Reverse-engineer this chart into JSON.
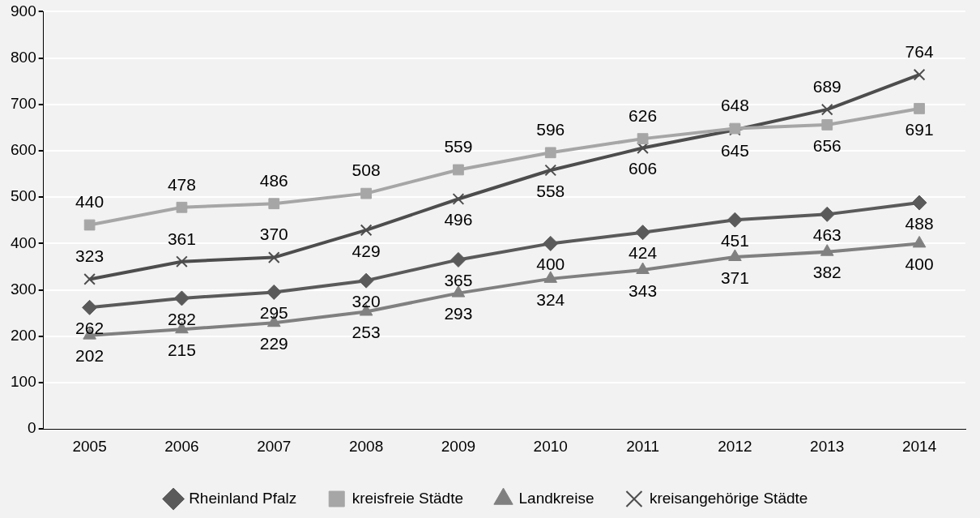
{
  "chart_data": {
    "type": "line",
    "categories": [
      "2005",
      "2006",
      "2007",
      "2008",
      "2009",
      "2010",
      "2011",
      "2012",
      "2013",
      "2014"
    ],
    "series": [
      {
        "name": "Rheinland Pfalz",
        "color": "#5a5a5a",
        "marker": "diamond",
        "values": [
          262,
          282,
          295,
          320,
          365,
          400,
          424,
          451,
          463,
          488
        ]
      },
      {
        "name": "kreisfreie Städte",
        "color": "#a6a6a6",
        "marker": "square",
        "values": [
          440,
          478,
          486,
          508,
          559,
          596,
          626,
          648,
          656,
          691
        ]
      },
      {
        "name": "Landkreise",
        "color": "#808080",
        "marker": "triangle",
        "values": [
          202,
          215,
          229,
          253,
          293,
          324,
          343,
          371,
          382,
          400
        ]
      },
      {
        "name": "kreisangehörige Städte",
        "color": "#4d4d4d",
        "marker": "cross",
        "values": [
          323,
          361,
          370,
          429,
          496,
          558,
          606,
          645,
          689,
          764
        ]
      }
    ],
    "ylim": [
      0,
      900
    ],
    "yticks": [
      0,
      100,
      200,
      300,
      400,
      500,
      600,
      700,
      800,
      900
    ],
    "grid": "y",
    "legend": "bottom",
    "data_labels": true
  }
}
